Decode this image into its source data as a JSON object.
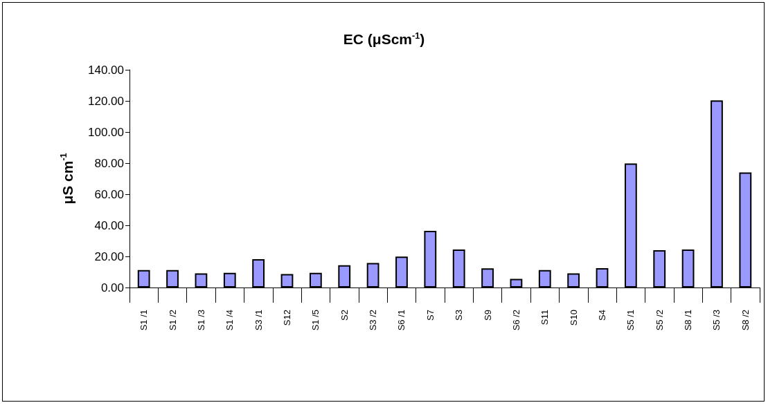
{
  "chart_data": {
    "type": "bar",
    "title": "EC (μScm$^{-1}$)",
    "ylabel": "μS cm$^{-1}$",
    "categories": [
      "S1 /1",
      "S1 /2",
      "S1 /3",
      "S1 /4",
      "S3 /1",
      "S12",
      "S1 /5",
      "S2",
      "S3 /2",
      "S6 /1",
      "S7",
      "S3",
      "S9",
      "S6 /2",
      "S11",
      "S10",
      "S4",
      "S5 /1",
      "S5 /2",
      "S8 /1",
      "S5 /3",
      "S8 /2"
    ],
    "values": [
      11.2,
      11.2,
      9.1,
      9.4,
      18.2,
      8.7,
      9.4,
      14.3,
      15.8,
      19.9,
      36.4,
      24.4,
      12.3,
      5.6,
      11.2,
      9.1,
      12.5,
      79.8,
      24.0,
      24.4,
      120.3,
      74.0
    ],
    "color": "#9999ff",
    "ylim": [
      0,
      140
    ],
    "yticks": [
      {
        "value": 0,
        "label": "0.00"
      },
      {
        "value": 20,
        "label": "20.00"
      },
      {
        "value": 40,
        "label": "40.00"
      },
      {
        "value": 60,
        "label": "60.00"
      },
      {
        "value": 80,
        "label": "80.00"
      },
      {
        "value": 100,
        "label": "100.00"
      },
      {
        "value": 120,
        "label": "120.00"
      },
      {
        "value": 140,
        "label": "140.00"
      }
    ],
    "grid": false
  }
}
